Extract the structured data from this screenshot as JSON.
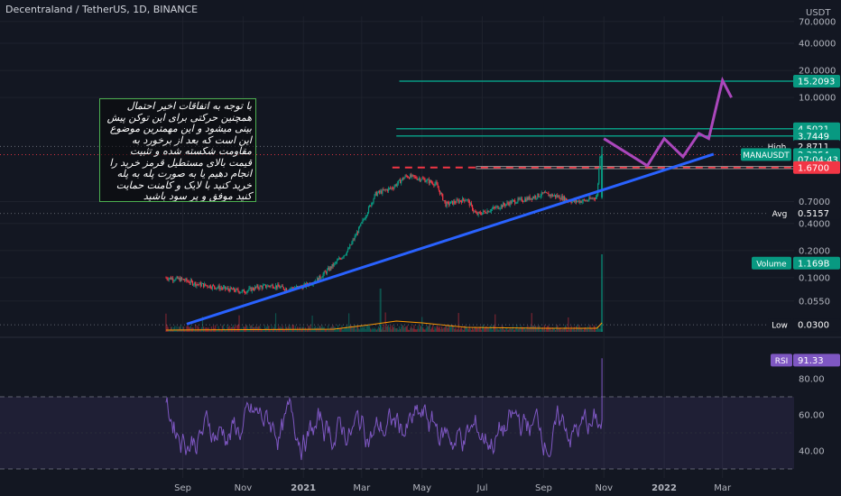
{
  "header": {
    "title": "Decentraland / TetherUS, 1D, BINANCE",
    "currency": "USDT"
  },
  "note_text": "با توجه به اتفاقات اخیر احتمال همچنین حرکتی برای این توکن پیش بینی میشود و این مهمترین موضوع این است که بعد از برخورد به مقاومت شکسته شده و تثبیت قیمت بالای مستطیل قرمز خرید را انجام دهیم یا به صورت پله به پله خرید کنید با لایک و کامنت حمایت کنید موفق و پر سود باشید",
  "price_labels": [
    {
      "id": "target",
      "label": "",
      "value": "15.2093",
      "color": "#089981",
      "y": 15.2093
    },
    {
      "id": "r1",
      "label": "",
      "value": "4.5021",
      "color": "#089981",
      "y": 4.5021
    },
    {
      "id": "r2",
      "label": "",
      "value": "3.7449",
      "color": "#089981",
      "y": 3.7449
    },
    {
      "id": "high",
      "label": "High",
      "value": "2.8711",
      "color": "#131722",
      "y": 2.8711
    },
    {
      "id": "cur",
      "label": "MANAUSDT",
      "value": "2.3254",
      "color": "#089981",
      "y": 2.3254
    },
    {
      "id": "countdown",
      "label": "",
      "value": "07:04:43",
      "color": "#089981",
      "y": 2.05
    },
    {
      "id": "red",
      "label": "",
      "value": "1.6700",
      "color": "#f23645",
      "y": 1.67
    },
    {
      "id": "avg",
      "label": "Avg",
      "value": "0.5157",
      "color": "#131722",
      "y": 0.5157
    },
    {
      "id": "vol",
      "label": "Volume",
      "value": "1.169B",
      "color": "#089981",
      "y": 0.145
    },
    {
      "id": "low",
      "label": "Low",
      "value": "0.0300",
      "color": "#131722",
      "y": 0.03
    }
  ],
  "rsi_label": {
    "label": "RSI",
    "value": "91.33"
  },
  "chart_data": [
    {
      "type": "candlestick",
      "scale": "log",
      "ylim": [
        0.025,
        80
      ],
      "y_ticks": [
        70.0,
        40.0,
        20.0,
        10.0,
        0.7,
        0.4,
        0.2,
        0.1,
        0.055
      ],
      "y_tick_labels": [
        "70.0000",
        "40.0000",
        "20.0000",
        "10.0000",
        "0.7000",
        "0.4000",
        "0.2000",
        "0.1000",
        "0.0550"
      ],
      "x_ticks": [
        "Sep",
        "Nov",
        "2021",
        "Mar",
        "May",
        "Jul",
        "Sep",
        "Nov",
        "2022",
        "Mar"
      ],
      "x_range": [
        "2020-07-15",
        "2022-04-15"
      ],
      "horizontal_levels": [
        {
          "value": 15.2093,
          "color": "#089981"
        },
        {
          "value": 4.5021,
          "color": "#089981"
        },
        {
          "value": 3.7449,
          "color": "#089981"
        },
        {
          "value": 1.67,
          "color": "#f23645",
          "style": "dashed"
        }
      ],
      "trendline": {
        "from": [
          "2020-09-05",
          0.0305
        ],
        "to": [
          "2022-02-20",
          2.35
        ],
        "color": "#2962ff"
      },
      "projection": {
        "color": "#ab47bc",
        "points": [
          [
            "2021-11-01",
            3.5
          ],
          [
            "2021-12-15",
            1.75
          ],
          [
            "2022-01-01",
            3.5
          ],
          [
            "2022-01-20",
            2.2
          ],
          [
            "2022-02-05",
            4.0
          ],
          [
            "2022-02-15",
            3.5
          ],
          [
            "2022-03-01",
            15.5
          ],
          [
            "2022-03-10",
            10.0
          ]
        ]
      },
      "price_path": [
        [
          "2020-08-15",
          0.1
        ],
        [
          "2020-09-01",
          0.095
        ],
        [
          "2020-09-15",
          0.085
        ],
        [
          "2020-10-01",
          0.08
        ],
        [
          "2020-10-15",
          0.075
        ],
        [
          "2020-11-01",
          0.07
        ],
        [
          "2020-11-15",
          0.078
        ],
        [
          "2020-12-01",
          0.082
        ],
        [
          "2020-12-15",
          0.075
        ],
        [
          "2021-01-01",
          0.08
        ],
        [
          "2021-01-15",
          0.095
        ],
        [
          "2021-02-01",
          0.14
        ],
        [
          "2021-02-15",
          0.2
        ],
        [
          "2021-03-01",
          0.4
        ],
        [
          "2021-03-15",
          0.85
        ],
        [
          "2021-04-01",
          1.0
        ],
        [
          "2021-04-15",
          1.35
        ],
        [
          "2021-05-01",
          1.25
        ],
        [
          "2021-05-15",
          1.1
        ],
        [
          "2021-05-25",
          0.65
        ],
        [
          "2021-06-15",
          0.75
        ],
        [
          "2021-06-25",
          0.5
        ],
        [
          "2021-07-15",
          0.6
        ],
        [
          "2021-08-01",
          0.7
        ],
        [
          "2021-08-15",
          0.75
        ],
        [
          "2021-09-01",
          0.85
        ],
        [
          "2021-09-15",
          0.8
        ],
        [
          "2021-10-01",
          0.7
        ],
        [
          "2021-10-15",
          0.72
        ],
        [
          "2021-10-25",
          0.8
        ],
        [
          "2021-10-28",
          2.3
        ],
        [
          "2021-10-30",
          2.3254
        ]
      ]
    },
    {
      "type": "line",
      "title": "RSI",
      "ylim": [
        25,
        100
      ],
      "y_ticks": [
        80,
        60,
        40
      ],
      "y_tick_labels": [
        "80.00",
        "60.00",
        "40.00"
      ],
      "bands": [
        30,
        70
      ],
      "last_value": 91.33
    }
  ]
}
